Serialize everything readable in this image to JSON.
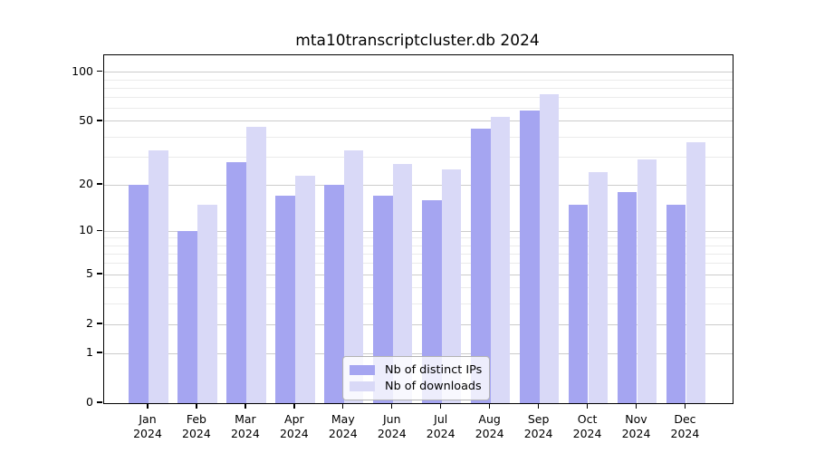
{
  "chart_data": {
    "type": "bar",
    "title": "mta10transcriptcluster.db 2024",
    "categories": [
      "Jan",
      "Feb",
      "Mar",
      "Apr",
      "May",
      "Jun",
      "Jul",
      "Aug",
      "Sep",
      "Oct",
      "Nov",
      "Dec"
    ],
    "year_label": "2024",
    "series": [
      {
        "name": "Nb of distinct IPs",
        "color": "#a5a5f1",
        "values": [
          20,
          10,
          28,
          17,
          20,
          17,
          16,
          45,
          58,
          15,
          18,
          15
        ]
      },
      {
        "name": "Nb of downloads",
        "color": "#d9d9f7",
        "values": [
          33,
          15,
          46,
          23,
          33,
          27,
          25,
          53,
          73,
          24,
          29,
          37
        ]
      }
    ],
    "xlabel": "",
    "ylabel": "",
    "yscale": "log1p",
    "ylim": [
      0,
      127
    ],
    "yticks": [
      0,
      1,
      2,
      5,
      10,
      20,
      50,
      100
    ],
    "minor_gridlines": [
      3,
      4,
      6,
      7,
      8,
      9,
      30,
      40,
      60,
      70,
      80,
      90
    ],
    "grid": true,
    "legend_position": "lower center"
  },
  "colors": {
    "major_grid": "#cccccc",
    "minor_grid": "#ebebeb",
    "spine": "#000000",
    "legend_border": "#b3b3b3"
  }
}
